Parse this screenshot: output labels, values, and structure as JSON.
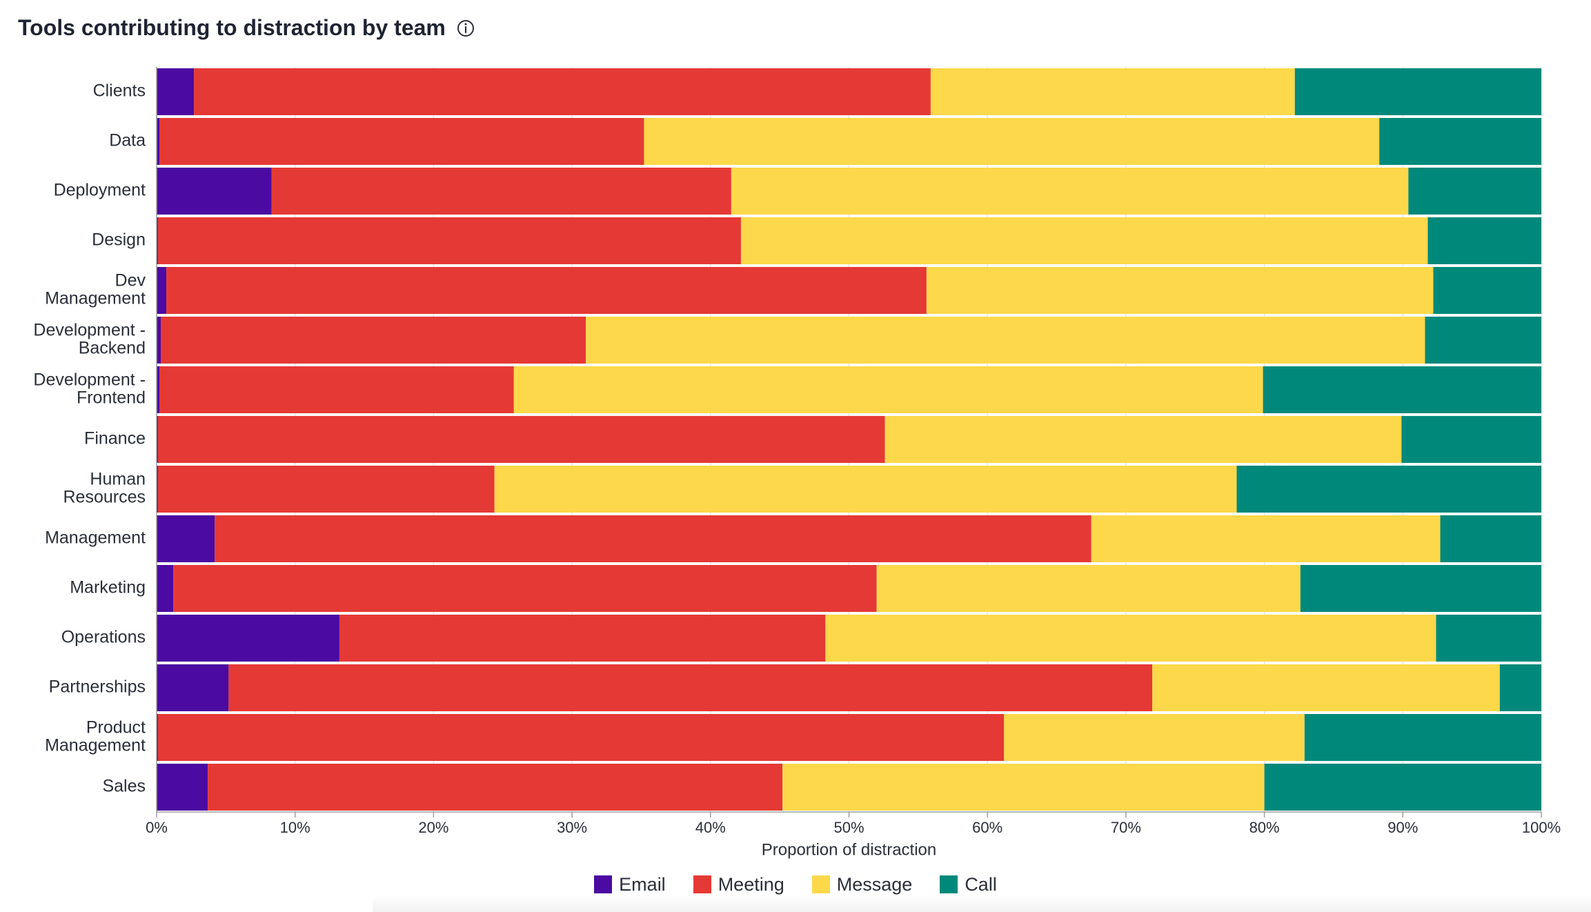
{
  "header": {
    "title": "Tools contributing to distraction by team",
    "info_icon": "info-icon"
  },
  "colors": {
    "Email": "#4b0aa1",
    "Meeting": "#e53935",
    "Message": "#fdd84a",
    "Call": "#00897b"
  },
  "chart_data": {
    "type": "bar",
    "orientation": "horizontal",
    "stacked": true,
    "title": "Tools contributing to distraction by team",
    "xlabel": "Proportion of distraction",
    "ylabel": "",
    "xlim": [
      0,
      100
    ],
    "x_ticks": [
      "0%",
      "10%",
      "20%",
      "30%",
      "40%",
      "50%",
      "60%",
      "70%",
      "80%",
      "90%",
      "100%"
    ],
    "grid": true,
    "legend_position": "bottom",
    "categories": [
      "Clients",
      "Data",
      "Deployment",
      "Design",
      "Dev Management",
      "Development - Backend",
      "Development - Frontend",
      "Finance",
      "Human Resources",
      "Management",
      "Marketing",
      "Operations",
      "Partnerships",
      "Product Management",
      "Sales"
    ],
    "category_lines": [
      [
        "Clients"
      ],
      [
        "Data"
      ],
      [
        "Deployment"
      ],
      [
        "Design"
      ],
      [
        "Dev",
        "Management"
      ],
      [
        "Development -",
        "Backend"
      ],
      [
        "Development -",
        "Frontend"
      ],
      [
        "Finance"
      ],
      [
        "Human",
        "Resources"
      ],
      [
        "Management"
      ],
      [
        "Marketing"
      ],
      [
        "Operations"
      ],
      [
        "Partnerships"
      ],
      [
        "Product",
        "Management"
      ],
      [
        "Sales"
      ]
    ],
    "series": [
      {
        "name": "Email",
        "values": [
          2.7,
          0.2,
          8.3,
          0.1,
          0.7,
          0.3,
          0.2,
          0.1,
          0.1,
          4.2,
          1.2,
          13.2,
          5.2,
          0.1,
          3.7
        ]
      },
      {
        "name": "Meeting",
        "values": [
          53.2,
          35.0,
          33.2,
          42.1,
          54.9,
          30.7,
          25.6,
          52.5,
          24.3,
          63.3,
          50.8,
          35.1,
          66.7,
          61.1,
          41.5
        ]
      },
      {
        "name": "Message",
        "values": [
          26.3,
          53.1,
          48.9,
          49.6,
          36.6,
          60.6,
          54.1,
          37.3,
          53.6,
          25.2,
          30.6,
          44.1,
          25.1,
          21.7,
          34.8
        ]
      },
      {
        "name": "Call",
        "values": [
          17.8,
          11.7,
          9.6,
          8.2,
          7.8,
          8.4,
          20.1,
          10.1,
          22.0,
          7.3,
          17.4,
          7.6,
          3.0,
          17.1,
          20.0
        ]
      }
    ]
  }
}
